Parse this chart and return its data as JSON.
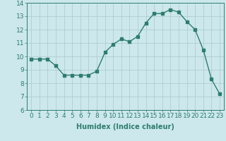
{
  "x": [
    0,
    1,
    2,
    3,
    4,
    5,
    6,
    7,
    8,
    9,
    10,
    11,
    12,
    13,
    14,
    15,
    16,
    17,
    18,
    19,
    20,
    21,
    22,
    23
  ],
  "y": [
    9.8,
    9.8,
    9.8,
    9.3,
    8.6,
    8.6,
    8.6,
    8.6,
    8.9,
    10.3,
    10.9,
    11.3,
    11.1,
    11.5,
    12.5,
    13.2,
    13.2,
    13.5,
    13.3,
    12.6,
    12.0,
    10.5,
    8.3,
    7.2
  ],
  "line_color": "#2e7d6e",
  "marker": "s",
  "markersize": 2.5,
  "linewidth": 1.0,
  "bg_color": "#cce8ec",
  "grid_color": "#aac8cc",
  "xlabel": "Humidex (Indice chaleur)",
  "xlabel_fontsize": 7,
  "tick_fontsize": 6.5,
  "xlim": [
    -0.5,
    23.5
  ],
  "ylim": [
    6,
    14
  ],
  "yticks": [
    6,
    7,
    8,
    9,
    10,
    11,
    12,
    13,
    14
  ],
  "xticks": [
    0,
    1,
    2,
    3,
    4,
    5,
    6,
    7,
    8,
    9,
    10,
    11,
    12,
    13,
    14,
    15,
    16,
    17,
    18,
    19,
    20,
    21,
    22,
    23
  ]
}
